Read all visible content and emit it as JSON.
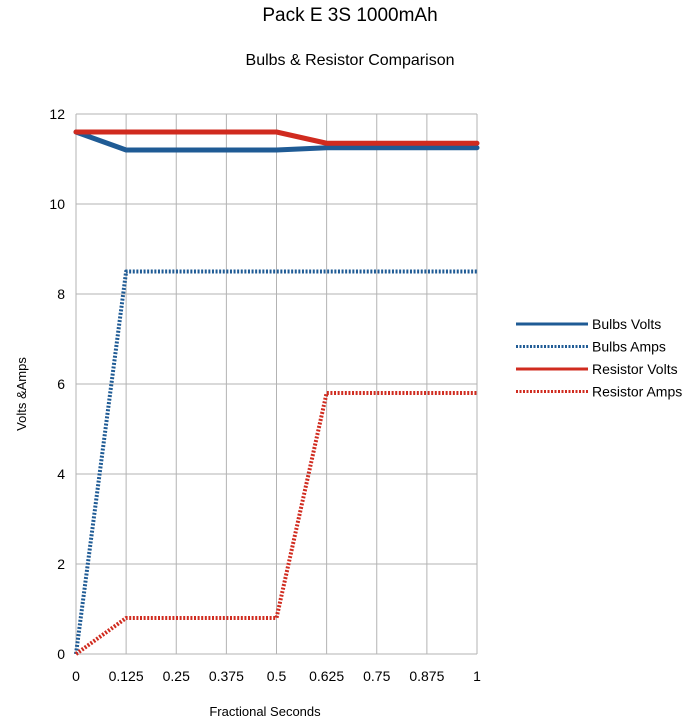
{
  "chart_data": {
    "type": "line",
    "title": "Pack E 3S 1000mAh",
    "subtitle": "Bulbs & Resistor Comparison",
    "xlabel": "Fractional Seconds",
    "ylabel": "Volts &Amps",
    "xlim": [
      0,
      1
    ],
    "ylim": [
      0,
      12
    ],
    "x_ticks": [
      "0",
      "0.125",
      "0.25",
      "0.375",
      "0.5",
      "0.625",
      "0.75",
      "0.875",
      "1"
    ],
    "y_ticks": [
      "0",
      "2",
      "4",
      "6",
      "8",
      "10",
      "12"
    ],
    "grid": true,
    "legend_position": "right",
    "series": [
      {
        "name": "Bulbs Volts",
        "style": "solid",
        "color": "#1f5b95",
        "x": [
          0,
          0.125,
          0.25,
          0.375,
          0.5,
          0.625,
          0.75,
          0.875,
          1
        ],
        "y": [
          11.6,
          11.2,
          11.2,
          11.2,
          11.2,
          11.25,
          11.25,
          11.25,
          11.25
        ]
      },
      {
        "name": "Bulbs Amps",
        "style": "dotted",
        "color": "#1f5b95",
        "x": [
          0,
          0.125,
          0.25,
          0.375,
          0.5,
          0.625,
          0.75,
          0.875,
          1
        ],
        "y": [
          0,
          8.5,
          8.5,
          8.5,
          8.5,
          8.5,
          8.5,
          8.5,
          8.5
        ]
      },
      {
        "name": "Resistor Volts",
        "style": "solid",
        "color": "#d02b1f",
        "x": [
          0,
          0.125,
          0.25,
          0.375,
          0.5,
          0.625,
          0.75,
          0.875,
          1
        ],
        "y": [
          11.6,
          11.6,
          11.6,
          11.6,
          11.6,
          11.35,
          11.35,
          11.35,
          11.35
        ]
      },
      {
        "name": "Resistor Amps",
        "style": "dotted",
        "color": "#d02b1f",
        "x": [
          0,
          0.125,
          0.25,
          0.375,
          0.5,
          0.625,
          0.75,
          0.875,
          1
        ],
        "y": [
          0,
          0.8,
          0.8,
          0.8,
          0.8,
          5.8,
          5.8,
          5.8,
          5.8
        ]
      }
    ]
  }
}
